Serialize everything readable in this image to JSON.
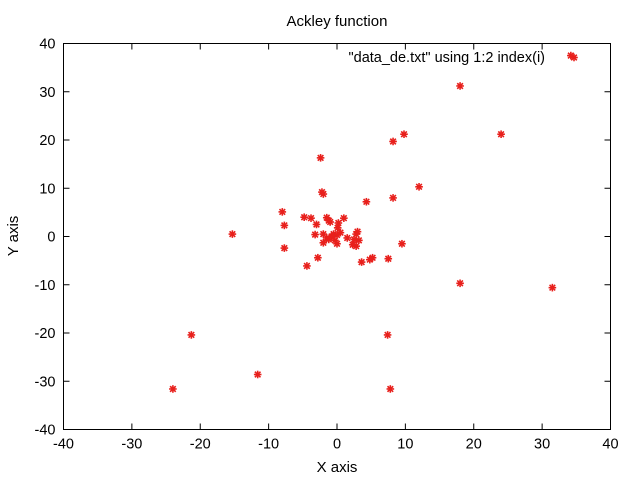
{
  "chart_data": {
    "type": "scatter",
    "title": "Ackley function",
    "xlabel": "X axis",
    "ylabel": "Y axis",
    "xlim": [
      -40,
      40
    ],
    "ylim": [
      -40,
      40
    ],
    "xticks": [
      -40,
      -30,
      -20,
      -10,
      0,
      10,
      20,
      30,
      40
    ],
    "yticks": [
      -40,
      -30,
      -20,
      -10,
      0,
      10,
      20,
      30,
      40
    ],
    "grid": false,
    "legend_position": "top-right",
    "marker": "asterisk",
    "series": [
      {
        "name": "\"data_de.txt\" using 1:2 index(i)",
        "color": "#e8201c",
        "points": [
          [
            18.0,
            31.2
          ],
          [
            9.8,
            21.2
          ],
          [
            24.0,
            21.2
          ],
          [
            8.2,
            19.7
          ],
          [
            -2.4,
            16.3
          ],
          [
            12.0,
            10.3
          ],
          [
            -2.2,
            9.2
          ],
          [
            -2.0,
            8.8
          ],
          [
            8.2,
            8.0
          ],
          [
            4.3,
            7.2
          ],
          [
            -8.0,
            5.1
          ],
          [
            -4.8,
            4.0
          ],
          [
            -3.8,
            3.8
          ],
          [
            -1.5,
            3.9
          ],
          [
            1.0,
            3.8
          ],
          [
            -1.2,
            3.3
          ],
          [
            -1.0,
            3.0
          ],
          [
            -3.0,
            2.5
          ],
          [
            0.2,
            2.8
          ],
          [
            -7.7,
            2.3
          ],
          [
            0.1,
            1.8
          ],
          [
            3.0,
            1.0
          ],
          [
            2.8,
            0.5
          ],
          [
            -15.3,
            0.5
          ],
          [
            -3.2,
            0.4
          ],
          [
            -2.0,
            0.5
          ],
          [
            -0.5,
            0.5
          ],
          [
            0.5,
            0.8
          ],
          [
            -1.5,
            -0.3
          ],
          [
            -0.8,
            0.0
          ],
          [
            0.0,
            0.3
          ],
          [
            1.5,
            -0.3
          ],
          [
            2.5,
            -0.6
          ],
          [
            -1.2,
            -0.6
          ],
          [
            -0.3,
            -0.8
          ],
          [
            3.2,
            -0.8
          ],
          [
            -2.0,
            -1.3
          ],
          [
            0.0,
            -1.5
          ],
          [
            2.3,
            -1.7
          ],
          [
            9.5,
            -1.5
          ],
          [
            2.8,
            -2.0
          ],
          [
            -7.7,
            -2.4
          ],
          [
            -2.8,
            -4.4
          ],
          [
            5.2,
            -4.4
          ],
          [
            4.8,
            -4.8
          ],
          [
            7.5,
            -4.6
          ],
          [
            3.6,
            -5.3
          ],
          [
            -4.4,
            -6.1
          ],
          [
            18.0,
            -9.7
          ],
          [
            31.5,
            -10.6
          ],
          [
            -21.3,
            -20.4
          ],
          [
            7.4,
            -20.4
          ],
          [
            -11.6,
            -28.6
          ],
          [
            -24.0,
            -31.6
          ],
          [
            7.8,
            -31.6
          ],
          [
            34.2,
            37.5
          ]
        ]
      }
    ]
  }
}
